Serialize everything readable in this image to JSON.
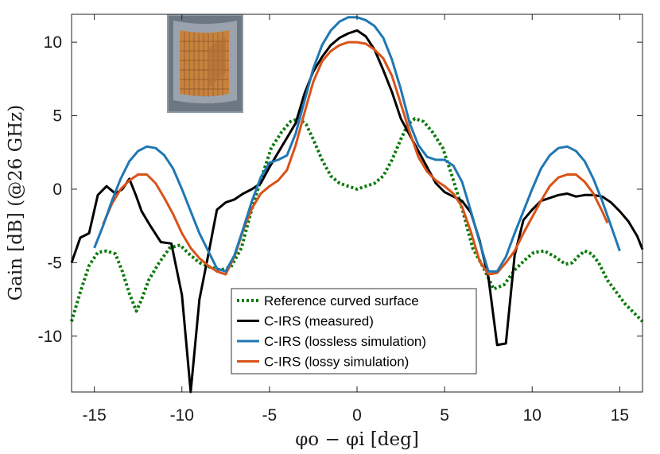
{
  "chart_data": {
    "type": "line",
    "title": "",
    "xlabel": "φo − φi [deg]",
    "ylabel": "Gain [dB] (@26 GHz)",
    "xlim": [
      -16.3,
      16.3
    ],
    "ylim": [
      -13.8,
      11.9
    ],
    "xticks": [
      -15,
      -10,
      -5,
      0,
      5,
      10,
      15
    ],
    "yticks": [
      10,
      5,
      0,
      -5,
      -10
    ],
    "grid": false,
    "legend_position": "bottom-center",
    "inset_image": "c-irs-prototype-photo",
    "series": [
      {
        "name": "Reference curved surface",
        "color": "#0a7a0a",
        "style": "dotted",
        "x": [
          -16.3,
          -15.8,
          -15.3,
          -14.8,
          -14.3,
          -13.8,
          -13.4,
          -13.0,
          -12.6,
          -12.3,
          -11.9,
          -11.3,
          -10.7,
          -10.1,
          -9.6,
          -9.0,
          -8.4,
          -7.8,
          -7.2,
          -6.6,
          -6.0,
          -5.4,
          -4.9,
          -4.3,
          -3.8,
          -3.3,
          -2.9,
          -2.5,
          -2.0,
          -1.5,
          -1.0,
          -0.5,
          0.0,
          0.5,
          1.0,
          1.5,
          2.0,
          2.5,
          2.9,
          3.3,
          3.8,
          4.3,
          4.9,
          5.4,
          6.0,
          6.6,
          7.2,
          7.8,
          8.4,
          9.0,
          9.6,
          10.1,
          10.7,
          11.3,
          11.9,
          12.3,
          12.6,
          13.0,
          13.4,
          13.8,
          14.3,
          14.8,
          15.3,
          15.8,
          16.3
        ],
        "y": [
          -9.0,
          -7.0,
          -5.2,
          -4.3,
          -4.2,
          -4.4,
          -5.6,
          -7.1,
          -8.3,
          -7.5,
          -6.2,
          -5.0,
          -4.0,
          -3.8,
          -4.4,
          -5.0,
          -5.3,
          -5.5,
          -5.3,
          -4.0,
          -1.3,
          1.0,
          2.8,
          3.9,
          4.6,
          4.8,
          4.4,
          3.4,
          2.0,
          0.9,
          0.4,
          0.2,
          0.0,
          0.2,
          0.4,
          0.9,
          2.0,
          3.4,
          4.4,
          4.8,
          4.6,
          3.9,
          2.8,
          1.0,
          -1.3,
          -4.0,
          -5.3,
          -6.8,
          -6.5,
          -5.5,
          -4.8,
          -4.3,
          -4.2,
          -4.6,
          -5.1,
          -5.0,
          -4.6,
          -4.2,
          -4.4,
          -5.0,
          -6.2,
          -7.0,
          -7.8,
          -8.4,
          -9.0
        ]
      },
      {
        "name": "C-IRS (measured)",
        "color": "#000000",
        "style": "solid",
        "x": [
          -16.3,
          -15.8,
          -15.3,
          -14.8,
          -14.3,
          -13.8,
          -13.4,
          -13.0,
          -12.6,
          -12.3,
          -11.8,
          -11.2,
          -10.6,
          -10.0,
          -9.5,
          -9.0,
          -8.5,
          -8.0,
          -7.5,
          -7.0,
          -6.5,
          -6.0,
          -5.5,
          -5.0,
          -4.5,
          -4.0,
          -3.5,
          -3.0,
          -2.5,
          -2.0,
          -1.5,
          -1.0,
          -0.5,
          0.0,
          0.5,
          1.0,
          1.5,
          2.0,
          2.5,
          3.0,
          3.5,
          4.0,
          4.5,
          5.0,
          5.5,
          6.0,
          6.5,
          7.0,
          7.5,
          8.0,
          8.5,
          9.0,
          9.5,
          10.0,
          10.5,
          11.0,
          11.5,
          12.0,
          12.5,
          13.0,
          13.5,
          14.0,
          14.5,
          15.0,
          15.5,
          16.0,
          16.3
        ],
        "y": [
          -5.0,
          -3.3,
          -3.0,
          -0.4,
          0.2,
          -0.3,
          0.0,
          0.7,
          -0.5,
          -1.5,
          -2.5,
          -3.6,
          -3.7,
          -7.2,
          -13.8,
          -7.5,
          -4.5,
          -1.4,
          -0.9,
          -0.7,
          -0.3,
          0.0,
          0.4,
          1.5,
          2.5,
          3.5,
          4.5,
          6.5,
          8.0,
          9.0,
          9.8,
          10.3,
          10.6,
          10.8,
          10.4,
          9.5,
          8.1,
          6.6,
          4.8,
          3.7,
          2.6,
          1.5,
          0.4,
          -0.2,
          -0.5,
          -0.8,
          -1.6,
          -3.5,
          -6.0,
          -10.6,
          -10.5,
          -4.5,
          -2.1,
          -1.4,
          -0.8,
          -0.6,
          -0.4,
          -0.3,
          -0.5,
          -0.4,
          -0.4,
          -0.5,
          -0.9,
          -1.5,
          -2.2,
          -3.2,
          -4.1
        ]
      },
      {
        "name": "C-IRS (lossless simulation)",
        "color": "#1f77b4",
        "style": "solid",
        "x": [
          -15.0,
          -14.5,
          -14.0,
          -13.5,
          -13.0,
          -12.5,
          -12.0,
          -11.5,
          -11.0,
          -10.5,
          -10.0,
          -9.5,
          -9.0,
          -8.5,
          -8.0,
          -7.5,
          -7.0,
          -6.5,
          -6.0,
          -5.5,
          -5.0,
          -4.5,
          -4.0,
          -3.5,
          -3.0,
          -2.5,
          -2.0,
          -1.5,
          -1.0,
          -0.5,
          0.0,
          0.5,
          1.0,
          1.5,
          2.0,
          2.5,
          3.0,
          3.5,
          4.0,
          4.5,
          5.0,
          5.5,
          6.0,
          6.5,
          7.0,
          7.5,
          8.0,
          8.5,
          9.0,
          9.5,
          10.0,
          10.5,
          11.0,
          11.5,
          12.0,
          12.5,
          13.0,
          13.5,
          14.0,
          14.5,
          15.0
        ],
        "y": [
          -4.0,
          -2.5,
          -0.8,
          0.7,
          1.9,
          2.6,
          2.9,
          2.8,
          2.3,
          1.4,
          0.0,
          -1.5,
          -3.0,
          -4.2,
          -5.4,
          -5.6,
          -4.5,
          -2.7,
          -0.8,
          0.8,
          1.8,
          2.0,
          2.3,
          3.8,
          6.0,
          8.2,
          9.8,
          10.8,
          11.4,
          11.7,
          11.7,
          11.5,
          11.1,
          10.3,
          8.8,
          6.8,
          4.5,
          3.0,
          2.2,
          2.0,
          2.0,
          1.6,
          0.5,
          -1.5,
          -3.6,
          -5.6,
          -5.6,
          -4.6,
          -3.0,
          -1.5,
          0.0,
          1.4,
          2.3,
          2.8,
          2.9,
          2.6,
          1.9,
          0.7,
          -0.8,
          -2.5,
          -4.2
        ]
      },
      {
        "name": "C-IRS (lossy simulation)",
        "color": "#d95319",
        "style": "solid",
        "x": [
          -14.5,
          -14.0,
          -13.5,
          -13.0,
          -12.5,
          -12.0,
          -11.5,
          -11.0,
          -10.5,
          -10.0,
          -9.5,
          -9.0,
          -8.5,
          -8.0,
          -7.5,
          -7.0,
          -6.5,
          -6.0,
          -5.5,
          -5.0,
          -4.5,
          -4.0,
          -3.5,
          -3.0,
          -2.5,
          -2.0,
          -1.5,
          -1.0,
          -0.5,
          0.0,
          0.5,
          1.0,
          1.5,
          2.0,
          2.5,
          3.0,
          3.5,
          4.0,
          4.5,
          5.0,
          5.5,
          6.0,
          6.5,
          7.0,
          7.5,
          8.0,
          8.5,
          9.0,
          9.5,
          10.0,
          10.5,
          11.0,
          11.5,
          12.0,
          12.5,
          13.0,
          13.5,
          14.0,
          14.3
        ],
        "y": [
          -2.4,
          -1.0,
          0.0,
          0.6,
          1.0,
          1.0,
          0.4,
          -0.6,
          -1.7,
          -3.0,
          -4.0,
          -4.7,
          -5.2,
          -5.6,
          -5.8,
          -4.6,
          -2.8,
          -1.3,
          -0.3,
          0.2,
          0.6,
          1.3,
          3.0,
          5.2,
          7.3,
          8.7,
          9.4,
          9.8,
          10.0,
          10.0,
          9.9,
          9.5,
          8.9,
          7.7,
          5.8,
          3.9,
          2.2,
          1.2,
          0.6,
          0.2,
          -0.3,
          -1.2,
          -2.9,
          -4.9,
          -5.8,
          -5.7,
          -5.0,
          -4.2,
          -3.0,
          -1.9,
          -0.8,
          0.2,
          0.8,
          1.0,
          1.0,
          0.5,
          -0.3,
          -1.5,
          -2.3
        ]
      }
    ]
  }
}
